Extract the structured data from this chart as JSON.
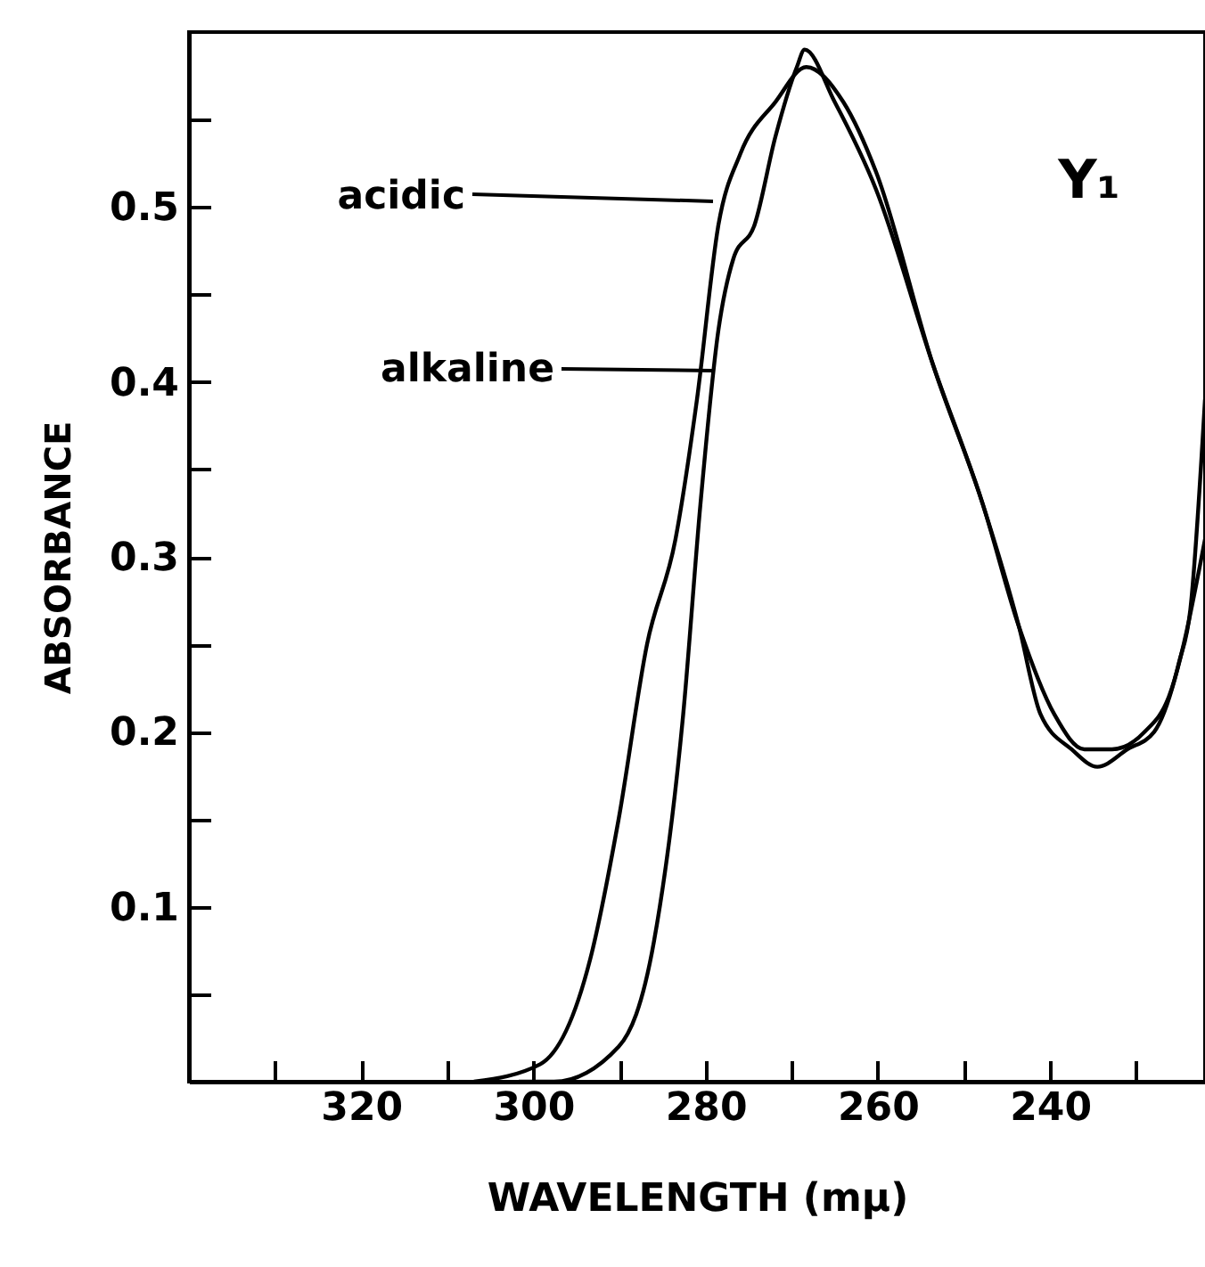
{
  "chart_data": {
    "type": "line",
    "xlabel": "WAVELENGTH (mμ)",
    "ylabel": "ABSORBANCE",
    "annotations": [
      "Y₁"
    ],
    "xlim": [
      340,
      222
    ],
    "xticks": [
      {
        "value": 330,
        "label": null
      },
      320,
      {
        "value": 310,
        "label": null
      },
      300,
      {
        "value": 290,
        "label": null
      },
      280,
      {
        "value": 270,
        "label": null
      },
      260,
      {
        "value": 250,
        "label": null
      },
      240,
      {
        "value": 230,
        "label": null
      }
    ],
    "ylim": [
      0,
      0.6
    ],
    "yticks": [
      {
        "value": 0.05,
        "label": null
      },
      0.1,
      {
        "value": 0.15,
        "label": null
      },
      0.2,
      {
        "value": 0.25,
        "label": null
      },
      0.3,
      {
        "value": 0.35,
        "label": null
      },
      0.4,
      {
        "value": 0.45,
        "label": null
      },
      0.5,
      {
        "value": 0.55,
        "label": null
      }
    ],
    "grid": false,
    "marker": "none",
    "line_style": "solid",
    "series": [
      {
        "name": "acidic",
        "color": "#000000",
        "x": [
          306.9,
          299.2,
          293.4,
          290.1,
          286.8,
          283.5,
          281.0,
          278.5,
          276.0,
          271.9,
          268.3,
          264.0,
          260.2,
          253.6,
          247.8,
          243.6,
          241.1,
          237.5,
          234.5,
          231.0,
          227.9,
          225.0,
          223.7,
          222.0
        ],
        "values": [
          0.0,
          0.01,
          0.07,
          0.15,
          0.25,
          0.31,
          0.39,
          0.49,
          0.53,
          0.56,
          0.58,
          0.56,
          0.52,
          0.41,
          0.33,
          0.26,
          0.21,
          0.19,
          0.18,
          0.19,
          0.2,
          0.24,
          0.27,
          0.39
        ]
      },
      {
        "name": "alkaline",
        "color": "#000000",
        "x": [
          301.7,
          297.6,
          290.1,
          286.0,
          282.6,
          280.6,
          278.5,
          276.8,
          274.3,
          271.9,
          269.4,
          268.5,
          265.0,
          260.2,
          253.6,
          247.8,
          243.6,
          239.5,
          236.0,
          232.8,
          229.0,
          226.2,
          222.0
        ],
        "values": [
          0.0,
          0.0,
          0.02,
          0.08,
          0.21,
          0.33,
          0.43,
          0.47,
          0.49,
          0.54,
          0.58,
          0.59,
          0.56,
          0.51,
          0.41,
          0.33,
          0.26,
          0.21,
          0.19,
          0.19,
          0.2,
          0.22,
          0.31
        ]
      }
    ]
  }
}
